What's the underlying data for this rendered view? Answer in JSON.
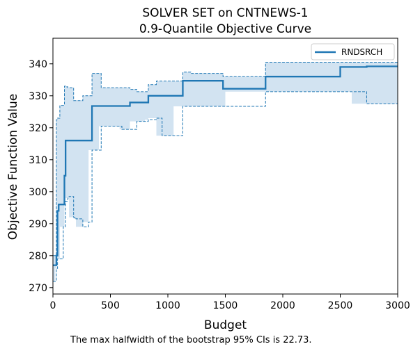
{
  "chart_data": {
    "type": "line",
    "title": "SOLVER SET on CNTNEWS-1",
    "subtitle": "0.9-Quantile Objective Curve",
    "xlabel": "Budget",
    "ylabel": "Objective Function Value",
    "xlim": [
      0,
      3000
    ],
    "ylim": [
      268,
      348
    ],
    "xticks": [
      0,
      500,
      1000,
      1500,
      2000,
      2500,
      3000
    ],
    "yticks": [
      270,
      280,
      290,
      300,
      310,
      320,
      330,
      340
    ],
    "grid": false,
    "legend_position": "top-right",
    "caption": "The max halfwidth of the bootstrap 95% CIs is 22.73.",
    "colors": {
      "line": "#1f77b4",
      "band": "#d0e2f0"
    },
    "series": [
      {
        "name": "RNDSRCH",
        "step": true,
        "x": [
          0,
          30,
          40,
          50,
          60,
          100,
          110,
          340,
          670,
          670,
          830,
          1130,
          1480,
          1850,
          2500,
          2730,
          3000
        ],
        "y": [
          277,
          280,
          294,
          296,
          296,
          305,
          316,
          326.8,
          326.8,
          327.9,
          330,
          334.7,
          332.2,
          336,
          339,
          339.2,
          339.2
        ]
      }
    ],
    "ci_band": {
      "x": [
        0,
        20,
        30,
        40,
        50,
        60,
        90,
        100,
        110,
        130,
        140,
        180,
        200,
        260,
        310,
        340,
        400,
        420,
        580,
        600,
        670,
        730,
        800,
        830,
        900,
        950,
        1050,
        1130,
        1140,
        1200,
        1250,
        1480,
        1500,
        1850,
        2500,
        2600,
        2730,
        3000
      ],
      "lower": [
        272,
        272,
        276,
        279,
        279,
        279,
        289,
        289,
        297,
        298,
        298.5,
        292,
        291.5,
        289,
        290.5,
        313,
        313,
        320.5,
        320.5,
        319.5,
        319.5,
        322,
        322,
        322.5,
        323,
        317.5,
        317.5,
        326.7,
        326.7,
        326.7,
        326.7,
        326.7,
        326.7,
        331.3,
        331.3,
        331.3,
        327.5,
        327.5
      ],
      "upper": [
        280,
        280,
        322.5,
        323,
        323,
        327,
        327,
        333,
        332.8,
        332.5,
        332.5,
        328.5,
        328.5,
        330,
        330,
        337,
        337,
        332.5,
        332.5,
        332.5,
        332,
        331.3,
        331.3,
        333.5,
        334.6,
        334.6,
        334.6,
        337.4,
        337.4,
        337,
        337,
        336,
        336,
        340.5,
        340.5,
        340.5,
        340.5,
        344.8
      ]
    }
  }
}
